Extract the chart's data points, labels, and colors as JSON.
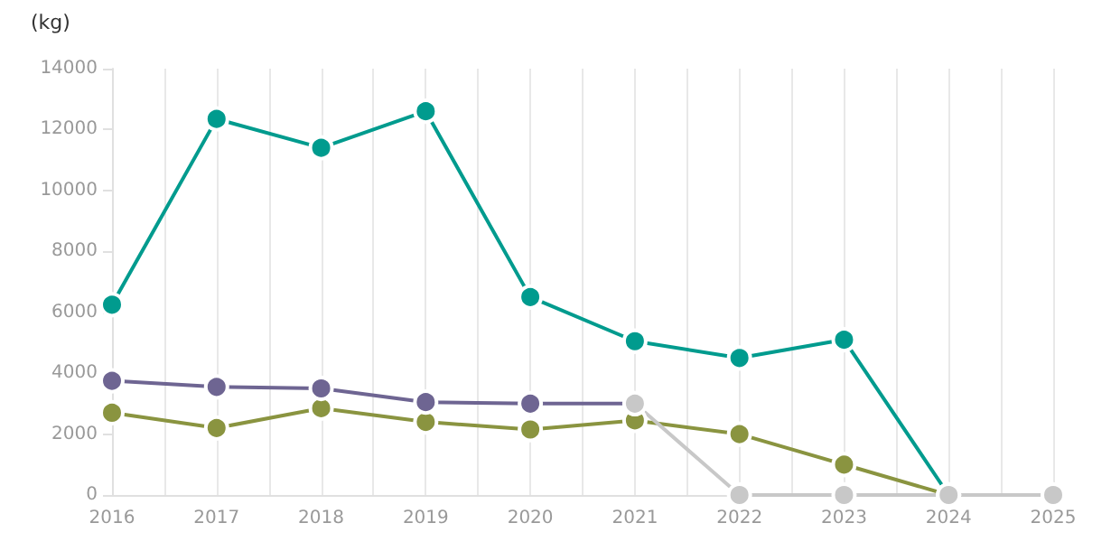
{
  "chart_data": {
    "type": "line",
    "ylabel": "(kg)",
    "x": [
      2016,
      2017,
      2018,
      2019,
      2020,
      2021,
      2022,
      2023,
      2024,
      2025
    ],
    "series": [
      {
        "color": "#009b8e",
        "values": [
          6250,
          12350,
          11400,
          12600,
          6500,
          5050,
          4500,
          5100,
          0,
          0
        ]
      },
      {
        "color": "#8a9440",
        "values": [
          2700,
          2200,
          2850,
          2400,
          2150,
          2450,
          2000,
          1000,
          0,
          null
        ]
      },
      {
        "color": "#6e6592",
        "values": [
          3750,
          3550,
          3500,
          3050,
          3000,
          3000,
          null,
          null,
          null,
          null
        ]
      },
      {
        "color": "#c8c8c8",
        "values": [
          null,
          null,
          null,
          null,
          null,
          3000,
          0,
          0,
          0,
          0
        ]
      }
    ],
    "xlim": [
      2016,
      2025
    ],
    "xticks": [
      2016,
      {
        "value": 2016.5,
        "label": null
      },
      2017,
      {
        "value": 2017.5,
        "label": null
      },
      2018,
      {
        "value": 2018.5,
        "label": null
      },
      2019,
      {
        "value": 2019.5,
        "label": null
      },
      2020,
      {
        "value": 2020.5,
        "label": null
      },
      2021,
      {
        "value": 2021.5,
        "label": null
      },
      2022,
      {
        "value": 2022.5,
        "label": null
      },
      2023,
      {
        "value": 2023.5,
        "label": null
      },
      2024,
      {
        "value": 2024.5,
        "label": null
      },
      2025
    ],
    "ylim": [
      0,
      14000
    ],
    "yticks": [
      0,
      2000,
      4000,
      6000,
      8000,
      10000,
      12000,
      14000
    ],
    "grid": "x",
    "marker": "circle",
    "line_style": "solid"
  }
}
